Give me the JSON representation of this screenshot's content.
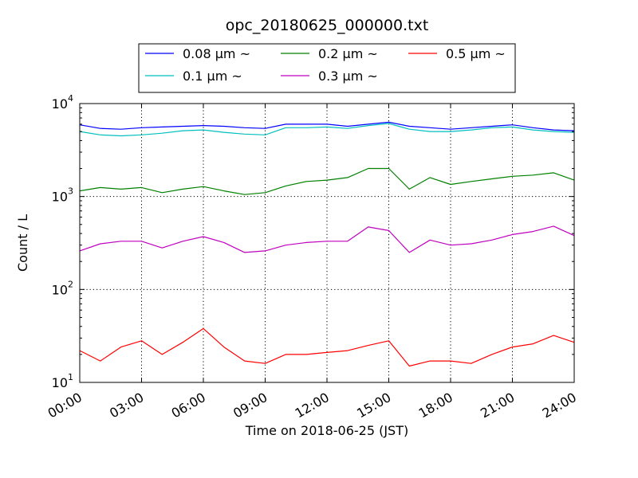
{
  "chart_data": {
    "type": "line",
    "title": "opc_20180625_000000.txt",
    "xlabel": "Time on 2018-06-25 (JST)",
    "ylabel": "Count / L",
    "yscale": "log",
    "ylim": [
      10,
      10000
    ],
    "y_ticks": [
      {
        "base": "10",
        "exp": "1",
        "value": 10
      },
      {
        "base": "10",
        "exp": "2",
        "value": 100
      },
      {
        "base": "10",
        "exp": "3",
        "value": 1000
      },
      {
        "base": "10",
        "exp": "4",
        "value": 10000
      }
    ],
    "x_ticks": [
      {
        "label": "00:00",
        "value": "2018-06-25T00:00"
      },
      {
        "label": "03:00",
        "value": "2018-06-25T03:00"
      },
      {
        "label": "06:00",
        "value": "2018-06-25T06:00"
      },
      {
        "label": "09:00",
        "value": "2018-06-25T09:00"
      },
      {
        "label": "12:00",
        "value": "2018-06-25T12:00"
      },
      {
        "label": "15:00",
        "value": "2018-06-25T15:00"
      },
      {
        "label": "18:00",
        "value": "2018-06-25T18:00"
      },
      {
        "label": "21:00",
        "value": "2018-06-25T21:00"
      },
      {
        "label": "24:00",
        "value": "2018-06-26T00:00"
      }
    ],
    "grid": true,
    "legend_position": "top-center",
    "x": [
      "2018-06-25T00:00",
      "2018-06-25T01:00",
      "2018-06-25T02:00",
      "2018-06-25T03:00",
      "2018-06-25T04:00",
      "2018-06-25T05:00",
      "2018-06-25T06:00",
      "2018-06-25T07:00",
      "2018-06-25T08:00",
      "2018-06-25T09:00",
      "2018-06-25T10:00",
      "2018-06-25T11:00",
      "2018-06-25T12:00",
      "2018-06-25T13:00",
      "2018-06-25T14:00",
      "2018-06-25T15:00",
      "2018-06-25T16:00",
      "2018-06-25T17:00",
      "2018-06-25T18:00",
      "2018-06-25T19:00",
      "2018-06-25T20:00",
      "2018-06-25T21:00",
      "2018-06-25T22:00",
      "2018-06-25T23:00",
      "2018-06-26T00:00"
    ],
    "series": [
      {
        "name": "0.08 μm ~",
        "color": "#0000ff",
        "values": [
          5900,
          5400,
          5300,
          5500,
          5600,
          5700,
          5800,
          5700,
          5500,
          5400,
          6000,
          6000,
          6000,
          5700,
          6000,
          6300,
          5700,
          5500,
          5300,
          5500,
          5700,
          5900,
          5500,
          5200,
          5100
        ]
      },
      {
        "name": "0.1 μm ~",
        "color": "#00bfbf",
        "values": [
          5000,
          4600,
          4500,
          4600,
          4800,
          5100,
          5200,
          4900,
          4700,
          4600,
          5500,
          5500,
          5600,
          5400,
          5800,
          6100,
          5300,
          5000,
          5000,
          5200,
          5500,
          5600,
          5200,
          5000,
          4900
        ]
      },
      {
        "name": "0.2 μm ~",
        "color": "#008000",
        "values": [
          1150,
          1250,
          1200,
          1250,
          1100,
          1200,
          1280,
          1150,
          1050,
          1100,
          1300,
          1450,
          1500,
          1600,
          2000,
          2000,
          1200,
          1600,
          1350,
          1450,
          1550,
          1650,
          1700,
          1800,
          1500
        ]
      },
      {
        "name": "0.3 μm ~",
        "color": "#bf00bf",
        "values": [
          260,
          310,
          330,
          330,
          280,
          330,
          370,
          320,
          250,
          260,
          300,
          320,
          330,
          330,
          470,
          430,
          250,
          340,
          300,
          310,
          340,
          390,
          420,
          480,
          380
        ]
      },
      {
        "name": "0.5 μm ~",
        "color": "#ff0000",
        "values": [
          22,
          17,
          24,
          28,
          20,
          27,
          38,
          24,
          17,
          16,
          20,
          20,
          21,
          22,
          25,
          28,
          15,
          17,
          17,
          16,
          20,
          24,
          26,
          32,
          27
        ]
      }
    ]
  }
}
